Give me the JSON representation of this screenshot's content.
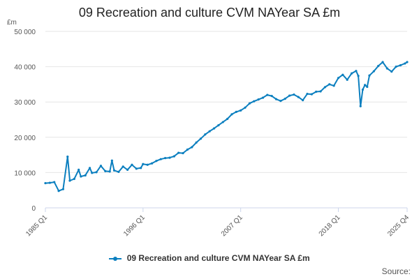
{
  "chart_data": {
    "type": "line",
    "title": "09 Recreation and culture CVM NAYear SA £m",
    "ylabel": "£m",
    "xlabel": "",
    "ylim": [
      0,
      50000
    ],
    "y_ticks": [
      0,
      10000,
      20000,
      30000,
      40000,
      50000
    ],
    "y_tick_labels": [
      "0",
      "10 000",
      "20 000",
      "30 000",
      "40 000",
      "50 000"
    ],
    "x_range": [
      "1985 Q1",
      "2025 Q4"
    ],
    "x_tick_labels": [
      "1985 Q1",
      "1996 Q1",
      "2007 Q1",
      "2018 Q1",
      "2025 Q4"
    ],
    "grid": "horizontal",
    "legend_position": "bottom",
    "credits": "Source:",
    "color": "#0b7fbf",
    "series": [
      {
        "name": "09 Recreation and culture CVM NAYear SA £m",
        "points": [
          [
            "1985 Q1",
            7000
          ],
          [
            "1985 Q3",
            7100
          ],
          [
            "1986 Q1",
            7300
          ],
          [
            "1986 Q3",
            4800
          ],
          [
            "1987 Q1",
            5300
          ],
          [
            "1987 Q3",
            14500
          ],
          [
            "1987 Q4",
            7700
          ],
          [
            "1988 Q2",
            8200
          ],
          [
            "1988 Q4",
            10800
          ],
          [
            "1989 Q1",
            8900
          ],
          [
            "1989 Q3",
            9200
          ],
          [
            "1990 Q1",
            11300
          ],
          [
            "1990 Q2",
            9900
          ],
          [
            "1990 Q4",
            10100
          ],
          [
            "1991 Q2",
            11900
          ],
          [
            "1991 Q4",
            10400
          ],
          [
            "1992 Q2",
            10300
          ],
          [
            "1992 Q3",
            13400
          ],
          [
            "1992 Q4",
            10600
          ],
          [
            "1993 Q2",
            10200
          ],
          [
            "1993 Q4",
            11700
          ],
          [
            "1994 Q2",
            10800
          ],
          [
            "1994 Q4",
            12200
          ],
          [
            "1995 Q2",
            11100
          ],
          [
            "1995 Q4",
            11300
          ],
          [
            "1996 Q1",
            12400
          ],
          [
            "1996 Q3",
            12200
          ],
          [
            "1997 Q1",
            12600
          ],
          [
            "1997 Q3",
            13300
          ],
          [
            "1998 Q1",
            13800
          ],
          [
            "1998 Q3",
            14100
          ],
          [
            "1999 Q1",
            14200
          ],
          [
            "1999 Q3",
            14600
          ],
          [
            "2000 Q1",
            15600
          ],
          [
            "2000 Q3",
            15500
          ],
          [
            "2001 Q1",
            16500
          ],
          [
            "2001 Q3",
            17200
          ],
          [
            "2002 Q1",
            18500
          ],
          [
            "2002 Q3",
            19600
          ],
          [
            "2003 Q1",
            20800
          ],
          [
            "2003 Q3",
            21700
          ],
          [
            "2004 Q1",
            22500
          ],
          [
            "2004 Q3",
            23400
          ],
          [
            "2005 Q1",
            24300
          ],
          [
            "2005 Q3",
            25200
          ],
          [
            "2006 Q1",
            26500
          ],
          [
            "2006 Q3",
            27200
          ],
          [
            "2007 Q1",
            27600
          ],
          [
            "2007 Q3",
            28400
          ],
          [
            "2008 Q1",
            29600
          ],
          [
            "2008 Q3",
            30200
          ],
          [
            "2009 Q1",
            30700
          ],
          [
            "2009 Q3",
            31200
          ],
          [
            "2010 Q1",
            32000
          ],
          [
            "2010 Q3",
            31700
          ],
          [
            "2011 Q1",
            30800
          ],
          [
            "2011 Q3",
            30300
          ],
          [
            "2012 Q1",
            30900
          ],
          [
            "2012 Q3",
            31800
          ],
          [
            "2013 Q1",
            32100
          ],
          [
            "2013 Q3",
            31400
          ],
          [
            "2014 Q1",
            30500
          ],
          [
            "2014 Q3",
            32300
          ],
          [
            "2015 Q1",
            32200
          ],
          [
            "2015 Q3",
            32900
          ],
          [
            "2016 Q1",
            33000
          ],
          [
            "2016 Q3",
            34200
          ],
          [
            "2017 Q1",
            35000
          ],
          [
            "2017 Q3",
            34600
          ],
          [
            "2018 Q1",
            36800
          ],
          [
            "2018 Q3",
            37700
          ],
          [
            "2019 Q1",
            36300
          ],
          [
            "2019 Q3",
            38100
          ],
          [
            "2020 Q1",
            38800
          ],
          [
            "2020 Q2",
            37400
          ],
          [
            "2020 Q3",
            28800
          ],
          [
            "2020 Q4",
            33500
          ],
          [
            "2021 Q1",
            34800
          ],
          [
            "2021 Q2",
            34300
          ],
          [
            "2021 Q3",
            37500
          ],
          [
            "2022 Q1",
            38700
          ],
          [
            "2022 Q3",
            40200
          ],
          [
            "2023 Q1",
            41300
          ],
          [
            "2023 Q3",
            39500
          ],
          [
            "2024 Q1",
            38600
          ],
          [
            "2024 Q3",
            40000
          ],
          [
            "2025 Q1",
            40400
          ],
          [
            "2025 Q3",
            40900
          ],
          [
            "2025 Q4",
            41300
          ]
        ]
      }
    ]
  }
}
